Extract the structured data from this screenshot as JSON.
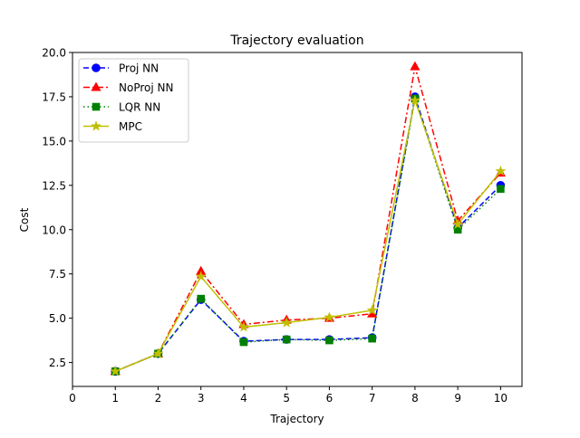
{
  "chart_data": {
    "type": "line",
    "title": "Trajectory evaluation",
    "xlabel": "Trajectory",
    "ylabel": "Cost",
    "xlim": [
      0,
      10.5
    ],
    "ylim": [
      1.15,
      20.0
    ],
    "xticks": [
      "0",
      "1",
      "2",
      "3",
      "4",
      "5",
      "6",
      "7",
      "8",
      "9",
      "10"
    ],
    "yticks": [
      "2.5",
      "5.0",
      "7.5",
      "10.0",
      "12.5",
      "15.0",
      "17.5",
      "20.0"
    ],
    "grid": false,
    "legend_position": "top-left",
    "x": [
      1,
      2,
      3,
      4,
      5,
      6,
      7,
      8,
      9,
      10
    ],
    "series": [
      {
        "name": "Proj NN",
        "color": "#0000ff",
        "line_style": "dashed",
        "marker": "circle",
        "values": [
          2.0,
          3.0,
          6.05,
          3.7,
          3.8,
          3.8,
          3.9,
          17.5,
          10.1,
          12.5
        ]
      },
      {
        "name": "NoProj NN",
        "color": "#ff0000",
        "line_style": "dashdot",
        "marker": "triangle",
        "values": [
          2.0,
          3.0,
          7.65,
          4.65,
          4.9,
          5.0,
          5.25,
          19.2,
          10.5,
          13.2
        ]
      },
      {
        "name": "LQR NN",
        "color": "#008000",
        "line_style": "dotted",
        "marker": "square",
        "values": [
          2.0,
          3.0,
          6.1,
          3.65,
          3.8,
          3.75,
          3.85,
          17.4,
          10.0,
          12.3
        ]
      },
      {
        "name": "MPC",
        "color": "#bfbf00",
        "line_style": "solid",
        "marker": "star",
        "values": [
          2.0,
          3.0,
          7.35,
          4.5,
          4.75,
          5.05,
          5.45,
          17.3,
          10.3,
          13.3
        ]
      }
    ]
  }
}
